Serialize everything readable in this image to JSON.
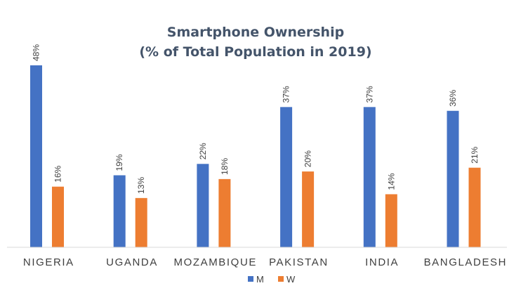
{
  "chart_data": {
    "type": "bar",
    "title": [
      "Smartphone Ownership",
      "(% of Total Population in 2019)"
    ],
    "categories": [
      "NIGERIA",
      "UGANDA",
      "MOZAMBIQUE",
      "PAKISTAN",
      "INDIA",
      "BANGLADESH"
    ],
    "series": [
      {
        "name": "M",
        "color": "#4472c4",
        "values": [
          48,
          19,
          22,
          37,
          37,
          36
        ],
        "labels": [
          "48%",
          "19%",
          "22%",
          "37%",
          "37%",
          "36%"
        ]
      },
      {
        "name": "W",
        "color": "#ed7d31",
        "values": [
          16,
          13,
          18,
          20,
          14,
          21
        ],
        "labels": [
          "16%",
          "13%",
          "18%",
          "20%",
          "14%",
          "21%"
        ]
      }
    ],
    "ylim": [
      0,
      48
    ],
    "grid": false,
    "legend": "bottom"
  }
}
